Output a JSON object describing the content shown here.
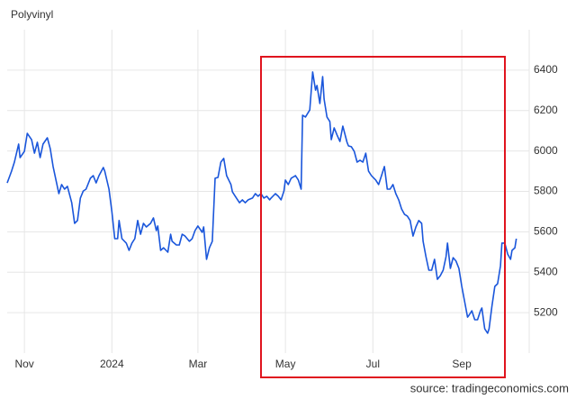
{
  "chart_data": {
    "type": "line",
    "title": "Polyvinyl",
    "source": "source: tradingeconomics.com",
    "color": "#1a56db",
    "grid": true,
    "xlim": [
      0,
      364
    ],
    "xticks": [
      {
        "value": 12,
        "label": "Nov"
      },
      {
        "value": 73,
        "label": "2024"
      },
      {
        "value": 133,
        "label": "Mar"
      },
      {
        "value": 194,
        "label": "May"
      },
      {
        "value": 255,
        "label": "Jul"
      },
      {
        "value": 317,
        "label": "Sep"
      }
    ],
    "ylim": [
      5000,
      6600
    ],
    "yticks": [
      5200,
      5400,
      5600,
      5800,
      6000,
      6200,
      6400
    ],
    "x": [
      0,
      3,
      5,
      8,
      9,
      12,
      14,
      17,
      19,
      21,
      23,
      25,
      28,
      30,
      32,
      34,
      36,
      38,
      40,
      42,
      45,
      47,
      49,
      51,
      53,
      55,
      58,
      60,
      62,
      64,
      67,
      68,
      71,
      73,
      75,
      77,
      78,
      80,
      83,
      85,
      87,
      89,
      91,
      93,
      95,
      97,
      100,
      102,
      104,
      105,
      107,
      109,
      112,
      114,
      115,
      118,
      120,
      122,
      124,
      127,
      129,
      131,
      133,
      136,
      137,
      139,
      141,
      143,
      145,
      147,
      149,
      151,
      153,
      156,
      157,
      159,
      162,
      164,
      166,
      168,
      171,
      173,
      175,
      177,
      179,
      181,
      183,
      184,
      187,
      189,
      191,
      193,
      194,
      196,
      198,
      201,
      203,
      205,
      206,
      208,
      211,
      213,
      215,
      216,
      218,
      220,
      221,
      223,
      225,
      226,
      228,
      230,
      232,
      234,
      237,
      238,
      240,
      242,
      244,
      246,
      248,
      250,
      252,
      254,
      257,
      259,
      261,
      263,
      265,
      267,
      269,
      271,
      273,
      275,
      277,
      279,
      281,
      283,
      285,
      287,
      289,
      290,
      292,
      294,
      296,
      298,
      300,
      302,
      304,
      306,
      307,
      309,
      311,
      313,
      315,
      317,
      319,
      321,
      322,
      324,
      326,
      328,
      330,
      331,
      333,
      335,
      336,
      338,
      340,
      342,
      344,
      345,
      347,
      349,
      351,
      352,
      354,
      355
    ],
    "values": [
      5842,
      5900,
      5945,
      6034,
      5967,
      5998,
      6087,
      6056,
      5989,
      6043,
      5967,
      6034,
      6065,
      6012,
      5923,
      5856,
      5789,
      5834,
      5811,
      5825,
      5744,
      5642,
      5656,
      5767,
      5802,
      5811,
      5865,
      5878,
      5842,
      5878,
      5918,
      5900,
      5811,
      5700,
      5566,
      5566,
      5656,
      5566,
      5544,
      5508,
      5544,
      5566,
      5656,
      5588,
      5642,
      5624,
      5642,
      5669,
      5606,
      5629,
      5508,
      5521,
      5499,
      5588,
      5553,
      5535,
      5535,
      5588,
      5579,
      5553,
      5566,
      5606,
      5629,
      5597,
      5624,
      5464,
      5521,
      5553,
      5865,
      5869,
      5945,
      5963,
      5878,
      5834,
      5798,
      5776,
      5744,
      5758,
      5744,
      5758,
      5767,
      5789,
      5776,
      5789,
      5767,
      5776,
      5758,
      5767,
      5789,
      5776,
      5758,
      5802,
      5856,
      5834,
      5865,
      5878,
      5856,
      5811,
      6177,
      6168,
      6203,
      6391,
      6301,
      6324,
      6235,
      6368,
      6257,
      6168,
      6146,
      6056,
      6114,
      6079,
      6047,
      6123,
      6043,
      6025,
      6021,
      5998,
      5945,
      5954,
      5945,
      5989,
      5900,
      5878,
      5856,
      5834,
      5878,
      5923,
      5811,
      5811,
      5834,
      5789,
      5758,
      5713,
      5687,
      5678,
      5656,
      5579,
      5624,
      5656,
      5642,
      5553,
      5477,
      5410,
      5410,
      5464,
      5365,
      5383,
      5410,
      5477,
      5544,
      5419,
      5472,
      5455,
      5419,
      5330,
      5254,
      5178,
      5187,
      5209,
      5165,
      5165,
      5209,
      5223,
      5120,
      5098,
      5120,
      5232,
      5330,
      5343,
      5432,
      5544,
      5544,
      5490,
      5464,
      5508,
      5521,
      5566
    ]
  }
}
